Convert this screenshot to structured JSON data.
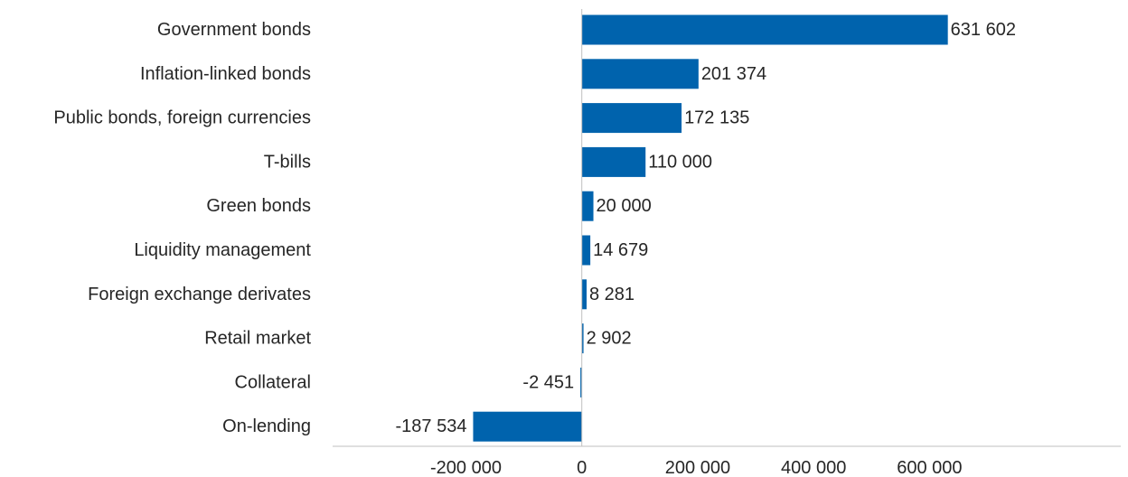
{
  "chart_data": {
    "type": "bar",
    "orientation": "horizontal",
    "title": "",
    "xlabel": "",
    "ylabel": "",
    "categories": [
      "Government bonds",
      "Inflation-linked bonds",
      "Public bonds, foreign currencies",
      "T-bills",
      "Green bonds",
      "Liquidity management",
      "Foreign exchange derivates",
      "Retail market",
      "Collateral",
      "On-lending"
    ],
    "values": [
      631602,
      201374,
      172135,
      110000,
      20000,
      14679,
      8281,
      2902,
      -2451,
      -187534
    ],
    "value_labels": [
      "631 602",
      "201 374",
      "172 135",
      "110 000",
      "20 000",
      "14 679",
      "8 281",
      "2 902",
      "-2 451",
      "-187 534"
    ],
    "xlim": [
      -430000,
      930000
    ],
    "xticks": [
      -200000,
      0,
      200000,
      400000,
      600000
    ],
    "xtick_labels": [
      "-200 000",
      "0",
      "200 000",
      "400 000",
      "600 000"
    ],
    "bar_color": "#0063AD",
    "grid": false,
    "legend": "none"
  }
}
